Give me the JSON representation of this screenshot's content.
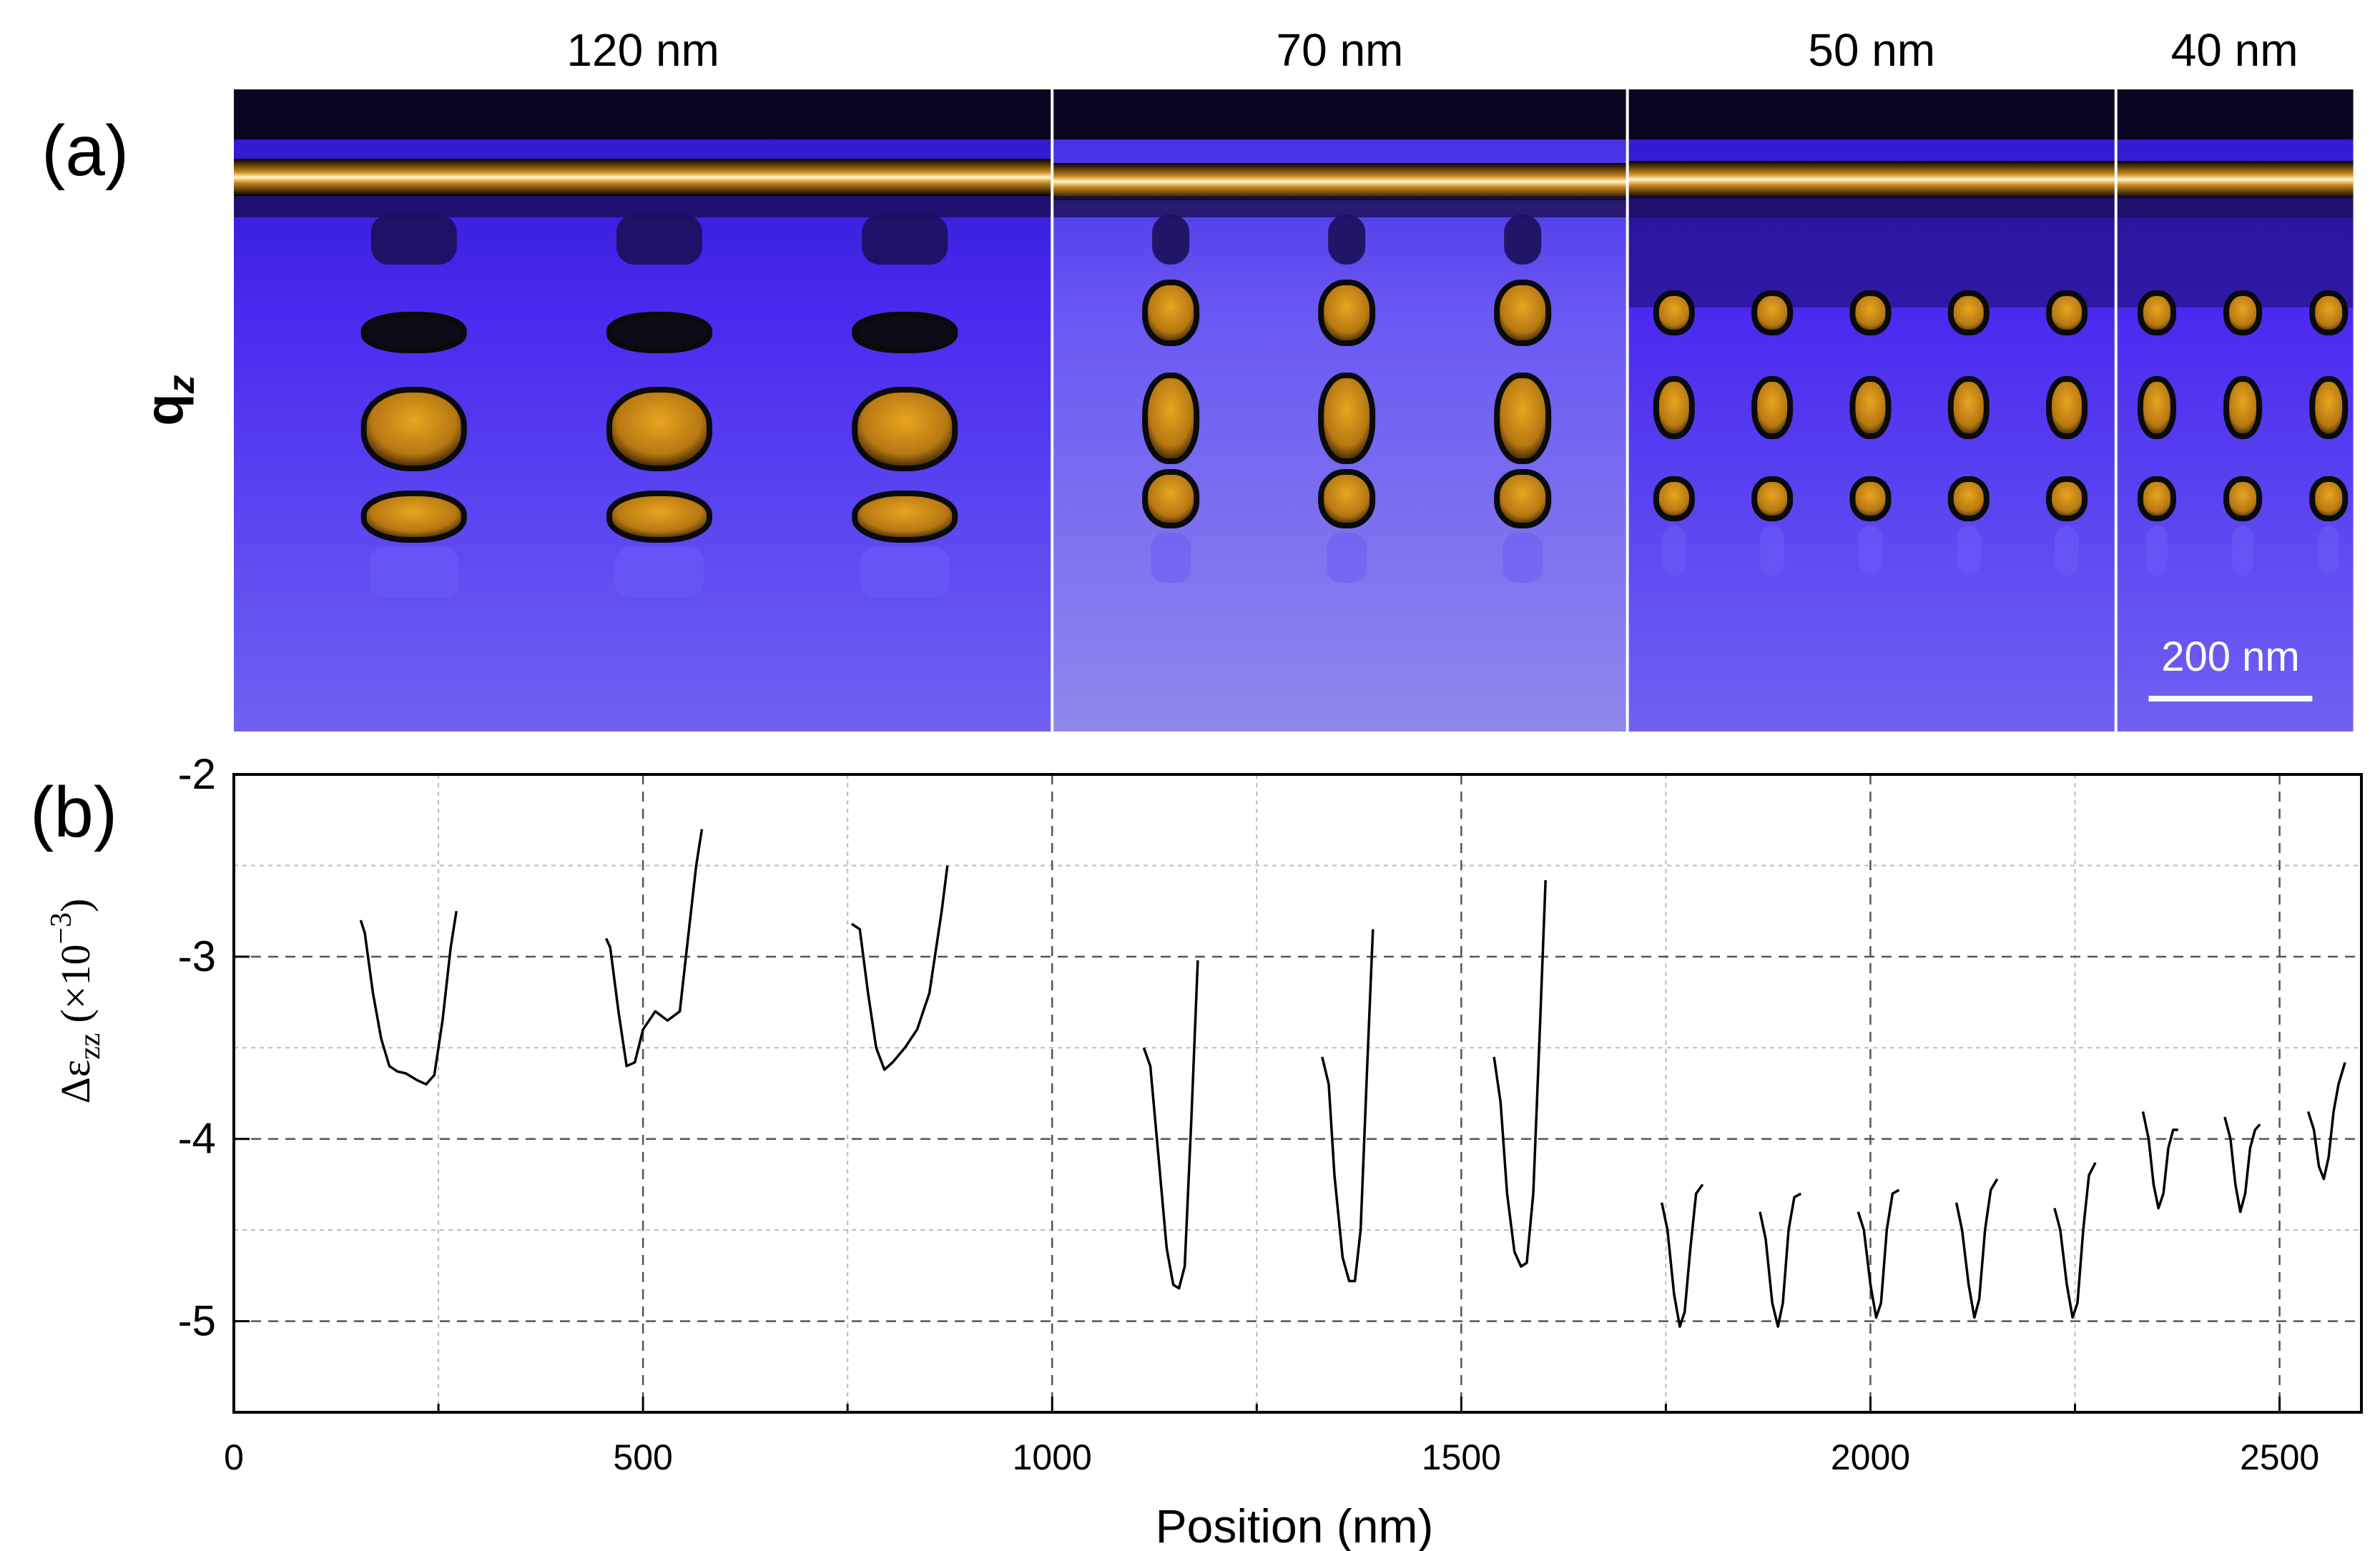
{
  "panel_a": {
    "label": "(a)",
    "y_axis_label": "q",
    "y_axis_subscript": "z",
    "segments": [
      {
        "title": "120 nm",
        "x_start": 0,
        "x_end": 1000,
        "period": 300,
        "first": 220
      },
      {
        "title": "70 nm",
        "x_start": 1000,
        "x_end": 1703,
        "period": 215,
        "first": 1145
      },
      {
        "title": "50 nm",
        "x_start": 1703,
        "x_end": 2300,
        "period": 120,
        "first": 1760
      },
      {
        "title": "40 nm",
        "x_start": 2300,
        "x_end": 2590,
        "period": 105,
        "first": 2350
      }
    ],
    "scale_bar_label": "200 nm",
    "scale_bar_length_nm": 200,
    "colors": {
      "background": "#4a2af0",
      "bright": "#fff3b0",
      "feature": "#c98a10",
      "dark": "#111111"
    }
  },
  "panel_b": {
    "label": "(b)"
  },
  "chart_data": {
    "type": "line",
    "title": "",
    "xlabel": "Position (nm)",
    "ylabel": "Δε",
    "ylabel_subscript": "zz",
    "ylabel_unit_prefix": "(×10",
    "ylabel_unit_exponent": "−3",
    "ylabel_unit_suffix": ")",
    "xlim": [
      0,
      2600
    ],
    "ylim": [
      -5.5,
      -2
    ],
    "xticks": [
      0,
      500,
      1000,
      1500,
      2000,
      2500
    ],
    "xtick_labels": [
      "0",
      "500",
      "1000",
      "1500",
      "2000",
      "2500"
    ],
    "yticks": [
      -2,
      -3,
      -4,
      -5
    ],
    "ytick_labels": [
      "-2",
      "-3",
      "-4",
      "-5"
    ],
    "grid": true,
    "series_color": "#000000",
    "series": [
      {
        "x": [
          155,
          160,
          170,
          180,
          190,
          200,
          210,
          225,
          235,
          245,
          255,
          265,
          272
        ],
        "y": [
          -2.8,
          -2.87,
          -3.2,
          -3.45,
          -3.6,
          -3.63,
          -3.64,
          -3.68,
          -3.7,
          -3.65,
          -3.35,
          -2.95,
          -2.75
        ]
      },
      {
        "x": [
          455,
          460,
          470,
          480,
          490,
          500,
          515,
          530,
          545,
          555,
          565,
          572
        ],
        "y": [
          -2.9,
          -2.95,
          -3.3,
          -3.6,
          -3.58,
          -3.4,
          -3.3,
          -3.35,
          -3.3,
          -2.9,
          -2.5,
          -2.3
        ]
      },
      {
        "x": [
          755,
          765,
          775,
          785,
          795,
          805,
          820,
          835,
          850,
          865,
          872
        ],
        "y": [
          -2.82,
          -2.85,
          -3.2,
          -3.5,
          -3.62,
          -3.58,
          -3.5,
          -3.4,
          -3.2,
          -2.75,
          -2.5
        ]
      },
      {
        "x": [
          1112,
          1120,
          1130,
          1140,
          1148,
          1155,
          1162,
          1170,
          1178
        ],
        "y": [
          -3.5,
          -3.6,
          -4.1,
          -4.6,
          -4.8,
          -4.82,
          -4.7,
          -3.9,
          -3.02
        ]
      },
      {
        "x": [
          1330,
          1338,
          1345,
          1355,
          1363,
          1370,
          1377,
          1385,
          1392
        ],
        "y": [
          -3.55,
          -3.7,
          -4.2,
          -4.65,
          -4.78,
          -4.78,
          -4.5,
          -3.6,
          -2.85
        ]
      },
      {
        "x": [
          1540,
          1548,
          1556,
          1565,
          1573,
          1580,
          1588,
          1596,
          1603
        ],
        "y": [
          -3.55,
          -3.8,
          -4.3,
          -4.62,
          -4.7,
          -4.68,
          -4.3,
          -3.4,
          -2.58
        ]
      },
      {
        "x": [
          1745,
          1752,
          1760,
          1767,
          1773,
          1780,
          1787,
          1795
        ],
        "y": [
          -4.35,
          -4.5,
          -4.85,
          -5.03,
          -4.95,
          -4.6,
          -4.3,
          -4.25
        ]
      },
      {
        "x": [
          1865,
          1872,
          1880,
          1887,
          1893,
          1900,
          1907,
          1915
        ],
        "y": [
          -4.4,
          -4.55,
          -4.9,
          -5.03,
          -4.9,
          -4.5,
          -4.32,
          -4.3
        ]
      },
      {
        "x": [
          1985,
          1992,
          2000,
          2007,
          2013,
          2020,
          2027,
          2035
        ],
        "y": [
          -4.4,
          -4.5,
          -4.8,
          -4.98,
          -4.9,
          -4.5,
          -4.3,
          -4.28
        ]
      },
      {
        "x": [
          2105,
          2112,
          2120,
          2127,
          2133,
          2140,
          2147,
          2155
        ],
        "y": [
          -4.35,
          -4.5,
          -4.8,
          -4.98,
          -4.88,
          -4.5,
          -4.28,
          -4.22
        ]
      },
      {
        "x": [
          2225,
          2232,
          2240,
          2247,
          2253,
          2260,
          2267,
          2275
        ],
        "y": [
          -4.38,
          -4.5,
          -4.8,
          -4.98,
          -4.9,
          -4.5,
          -4.2,
          -4.13
        ]
      },
      {
        "x": [
          2333,
          2340,
          2346,
          2352,
          2358,
          2364,
          2370,
          2376
        ],
        "y": [
          -3.85,
          -4.0,
          -4.25,
          -4.38,
          -4.3,
          -4.05,
          -3.95,
          -3.95
        ]
      },
      {
        "x": [
          2433,
          2440,
          2446,
          2452,
          2458,
          2464,
          2470,
          2476
        ],
        "y": [
          -3.88,
          -4.0,
          -4.25,
          -4.4,
          -4.3,
          -4.05,
          -3.95,
          -3.92
        ]
      },
      {
        "x": [
          2535,
          2542,
          2548,
          2554,
          2560,
          2566,
          2572,
          2580
        ],
        "y": [
          -3.85,
          -3.95,
          -4.15,
          -4.22,
          -4.1,
          -3.85,
          -3.7,
          -3.58
        ]
      }
    ]
  }
}
